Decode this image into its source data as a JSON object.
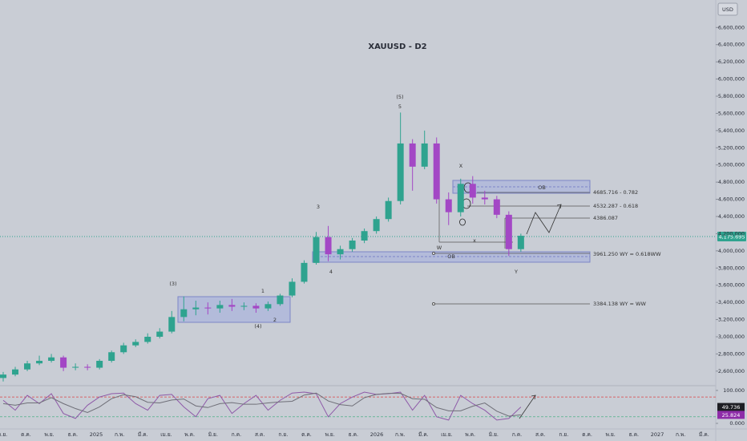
{
  "header": {
    "currency": "USD"
  },
  "chart_data": {
    "type": "candlestick",
    "title": "XAUUSD - D2",
    "up_color": "#2fa38f",
    "down_color": "#a347c5",
    "x_axis_labels": [
      "ก.ย.",
      "ต.ค.",
      "พ.ย.",
      "ธ.ค.",
      "2025",
      "ก.พ.",
      "มี.ค.",
      "เม.ย.",
      "พ.ค.",
      "มิ.ย.",
      "ก.ค.",
      "ส.ค.",
      "ก.ย.",
      "ต.ค.",
      "พ.ย.",
      "ธ.ค.",
      "2026",
      "ก.พ.",
      "มี.ค.",
      "เม.ย.",
      "พ.ค.",
      "มิ.ย.",
      "ก.ค.",
      "ส.ค.",
      "ก.ย.",
      "ต.ค.",
      "พ.ย.",
      "ธ.ค.",
      "2027",
      "ก.พ.",
      "มี.ค."
    ],
    "open": [
      2520000,
      2560000,
      2620000,
      2690000,
      2720000,
      2760000,
      2640000,
      2650000,
      2640000,
      2720000,
      2820000,
      2900000,
      2940000,
      3000000,
      3060000,
      3230000,
      3320000,
      3340000,
      3330000,
      3370000,
      3350000,
      3360000,
      3330000,
      3380000,
      3480000,
      3640000,
      3860000,
      4160000,
      3960000,
      4020000,
      4120000,
      4230000,
      4370000,
      4580000,
      5250000,
      4980000,
      5250000,
      4600000,
      4450000,
      4780000,
      4620000,
      4600000,
      4420000,
      4020000
    ],
    "high": [
      2590000,
      2650000,
      2720000,
      2780000,
      2800000,
      2780000,
      2690000,
      2680000,
      2740000,
      2840000,
      2930000,
      2970000,
      3040000,
      3100000,
      3300000,
      3470000,
      3420000,
      3400000,
      3420000,
      3440000,
      3400000,
      3390000,
      3410000,
      3500000,
      3680000,
      3890000,
      4220000,
      4290000,
      4060000,
      4150000,
      4260000,
      4400000,
      4620000,
      5610000,
      5300000,
      5400000,
      5320000,
      4680000,
      4840000,
      4870000,
      4700000,
      4640000,
      4460000,
      4200000
    ],
    "low": [
      2480000,
      2540000,
      2600000,
      2670000,
      2700000,
      2600000,
      2610000,
      2610000,
      2620000,
      2700000,
      2800000,
      2880000,
      2920000,
      2980000,
      3040000,
      3180000,
      3250000,
      3260000,
      3280000,
      3300000,
      3310000,
      3280000,
      3300000,
      3360000,
      3460000,
      3620000,
      3840000,
      3880000,
      3900000,
      3990000,
      4090000,
      4200000,
      4340000,
      4540000,
      4700000,
      4950000,
      4550000,
      4300000,
      4400000,
      4550000,
      4540000,
      4380000,
      3940000,
      3990000
    ],
    "close": [
      2560000,
      2620000,
      2690000,
      2720000,
      2760000,
      2640000,
      2650000,
      2640000,
      2720000,
      2820000,
      2900000,
      2940000,
      3000000,
      3060000,
      3230000,
      3320000,
      3340000,
      3330000,
      3370000,
      3350000,
      3360000,
      3330000,
      3380000,
      3480000,
      3640000,
      3860000,
      4160000,
      3960000,
      4020000,
      4120000,
      4230000,
      4370000,
      4580000,
      5250000,
      4980000,
      5250000,
      4600000,
      4450000,
      4780000,
      4620000,
      4600000,
      4420000,
      4020000,
      4175695
    ],
    "ylim": [
      2440000,
      6920000
    ],
    "yticks": [
      {
        "value": 2600000,
        "label": "2,600,000"
      },
      {
        "value": 2800000,
        "label": "2,800,000"
      },
      {
        "value": 3000000,
        "label": "3,000,000"
      },
      {
        "value": 3200000,
        "label": "3,200,000"
      },
      {
        "value": 3400000,
        "label": "3,400,000"
      },
      {
        "value": 3600000,
        "label": "3,600,000"
      },
      {
        "value": 3800000,
        "label": "3,800,000"
      },
      {
        "value": 4000000,
        "label": "4,000,000"
      },
      {
        "value": 4200000,
        "label": "4,200,000"
      },
      {
        "value": 4400000,
        "label": "4,400,000"
      },
      {
        "value": 4600000,
        "label": "4,600,000"
      },
      {
        "value": 4800000,
        "label": "4,800,000"
      },
      {
        "value": 5000000,
        "label": "5,000,000"
      },
      {
        "value": 5200000,
        "label": "5,200,000"
      },
      {
        "value": 5400000,
        "label": "5,400,000"
      },
      {
        "value": 5600000,
        "label": "5,600,000"
      },
      {
        "value": 5800000,
        "label": "5,800,000"
      },
      {
        "value": 6000000,
        "label": "6,000,000"
      },
      {
        "value": 6200000,
        "label": "6,200,000"
      },
      {
        "value": 6400000,
        "label": "6,400,000"
      },
      {
        "value": 6600000,
        "label": "6,600,000"
      }
    ],
    "current_price_label": "4,175.695",
    "annotations": [
      "(5)",
      "5",
      "3",
      "4",
      "(3)",
      "1",
      "2",
      "(4)",
      "X",
      "W",
      "Y",
      "OB",
      "OB",
      "4685.716 - 0.782",
      "4532.287 - 0.618",
      "4386.087",
      "3961.250 WY = 0.618WW",
      "3384.138 WY = WW",
      "x"
    ],
    "oscillator": {
      "type": "line",
      "ylim": [
        -17,
        112
      ],
      "yticks": [
        {
          "value": 100,
          "label": "100.000"
        },
        {
          "value": 0,
          "label": "0.000"
        }
      ],
      "levels": [
        80,
        20
      ],
      "series": [
        {
          "color": "#8e5aa8",
          "values": [
            70,
            40,
            85,
            60,
            90,
            30,
            15,
            55,
            80,
            90,
            92,
            60,
            40,
            85,
            88,
            50,
            20,
            75,
            85,
            30,
            60,
            85,
            40,
            70,
            92,
            95,
            90,
            20,
            60,
            80,
            95,
            88,
            90,
            95,
            40,
            85,
            20,
            10,
            85,
            60,
            40,
            10,
            15,
            49.736
          ]
        },
        {
          "color": "#6f6f78",
          "values": [
            60,
            55,
            62,
            62,
            78,
            60,
            45,
            33,
            50,
            75,
            87,
            81,
            64,
            62,
            71,
            74,
            53,
            48,
            60,
            63,
            58,
            58,
            62,
            65,
            67,
            86,
            92,
            68,
            57,
            53,
            78,
            88,
            91,
            91,
            75,
            73,
            48,
            38,
            38,
            52,
            62,
            37,
            22,
            25.824
          ]
        }
      ]
    }
  }
}
